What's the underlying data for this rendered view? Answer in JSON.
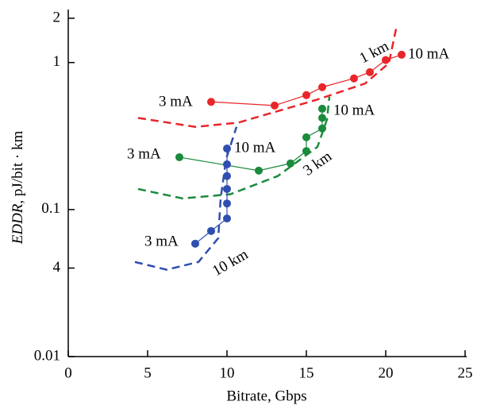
{
  "chart_data": {
    "type": "line",
    "xlabel": "Bitrate, Gbps",
    "ylabel_italic": "EDDR",
    "ylabel_rest": ", pJ/bit · km",
    "xlim": [
      0,
      25
    ],
    "xticks": [
      0,
      5,
      10,
      15,
      20,
      25
    ],
    "ylim": [
      0.01,
      2
    ],
    "yscale": "log",
    "yticks": [
      {
        "value": 0.01,
        "label": "0.01"
      },
      {
        "value": 0.04,
        "label": "4"
      },
      {
        "value": 0.1,
        "label": "0.1"
      },
      1,
      2
    ],
    "series": [
      {
        "color": "#e8262a",
        "style": "solid",
        "x": [
          9,
          13,
          15,
          16,
          18,
          19,
          20,
          21
        ],
        "values": [
          0.54,
          0.51,
          0.6,
          0.68,
          0.78,
          0.86,
          1.04,
          1.13
        ]
      },
      {
        "color": "#e8262a",
        "style": "dashed",
        "x": [
          4.4,
          8,
          10.7,
          15.7,
          18.7,
          20.2,
          20.7
        ],
        "values": [
          0.42,
          0.365,
          0.39,
          0.56,
          0.72,
          0.99,
          1.8
        ]
      },
      {
        "color": "#1a8a3c",
        "style": "solid",
        "x": [
          7,
          12,
          14,
          15,
          15,
          16,
          16,
          16
        ],
        "values": [
          0.227,
          0.184,
          0.206,
          0.25,
          0.31,
          0.356,
          0.42,
          0.485
        ]
      },
      {
        "color": "#1a8a3c",
        "style": "dashed",
        "x": [
          4.4,
          7.2,
          10.2,
          13.2,
          15.7,
          16.3,
          16.45
        ],
        "values": [
          0.138,
          0.119,
          0.127,
          0.169,
          0.267,
          0.41,
          0.586
        ]
      },
      {
        "color": "#2f4eb0",
        "style": "solid",
        "x": [
          8,
          9,
          10,
          10,
          10,
          10,
          10,
          10
        ],
        "values": [
          0.0586,
          0.0715,
          0.087,
          0.11,
          0.138,
          0.169,
          0.203,
          0.26
        ]
      },
      {
        "color": "#2f4eb0",
        "style": "dashed",
        "x": [
          4.2,
          6.2,
          8.2,
          9.45,
          9.6,
          9.95,
          10.6
        ],
        "values": [
          0.044,
          0.039,
          0.044,
          0.0639,
          0.119,
          0.222,
          0.365
        ]
      }
    ],
    "annotations": [
      {
        "text": "3 mA",
        "color": "#e8262a"
      },
      {
        "text": "10 mA",
        "color": "#e8262a"
      },
      {
        "text": "1 km",
        "color": "#e8262a"
      },
      {
        "text": "3 mA",
        "color": "#1a8a3c"
      },
      {
        "text": "10 mA",
        "color": "#1a8a3c"
      },
      {
        "text": "3 km",
        "color": "#1a8a3c"
      },
      {
        "text": "3 mA",
        "color": "#2f4eb0"
      },
      {
        "text": "10 mA",
        "color": "#2f4eb0"
      },
      {
        "text": "10 km",
        "color": "#2f4eb0"
      }
    ]
  }
}
